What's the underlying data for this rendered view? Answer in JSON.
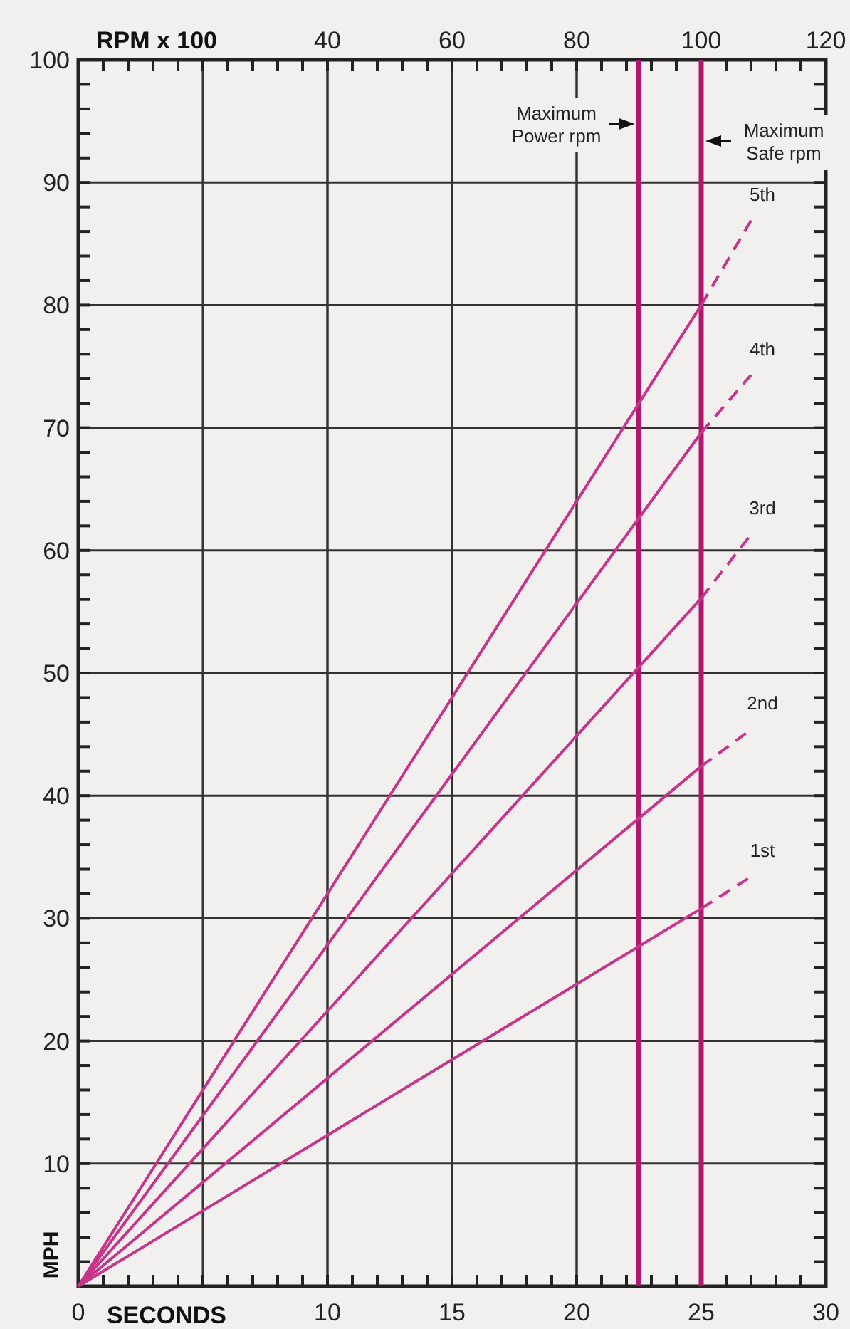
{
  "chart_data": {
    "type": "line",
    "xlabel": "SECONDS",
    "ylabel": "MPH",
    "x2label": "RPM x 100",
    "xlim": [
      0,
      30
    ],
    "ylim": [
      0,
      100
    ],
    "x2lim": [
      0,
      120
    ],
    "xticks": [
      0,
      {
        "value": 1,
        "label": null
      },
      {
        "value": 2,
        "label": null
      },
      {
        "value": 3,
        "label": null
      },
      {
        "value": 4,
        "label": null
      },
      {
        "value": 5,
        "label": null
      },
      {
        "value": 6,
        "label": null
      },
      {
        "value": 7,
        "label": null
      },
      {
        "value": 8,
        "label": null
      },
      {
        "value": 9,
        "label": null
      },
      10,
      {
        "value": 11,
        "label": null
      },
      {
        "value": 12,
        "label": null
      },
      {
        "value": 13,
        "label": null
      },
      {
        "value": 14,
        "label": null
      },
      15,
      {
        "value": 16,
        "label": null
      },
      {
        "value": 17,
        "label": null
      },
      {
        "value": 18,
        "label": null
      },
      {
        "value": 19,
        "label": null
      },
      20,
      {
        "value": 21,
        "label": null
      },
      {
        "value": 22,
        "label": null
      },
      {
        "value": 23,
        "label": null
      },
      {
        "value": 24,
        "label": null
      },
      25,
      {
        "value": 26,
        "label": null
      },
      {
        "value": 27,
        "label": null
      },
      {
        "value": 28,
        "label": null
      },
      {
        "value": 29,
        "label": null
      },
      30
    ],
    "yticks": [
      {
        "value": 2,
        "label": null
      },
      {
        "value": 4,
        "label": null
      },
      {
        "value": 6,
        "label": null
      },
      {
        "value": 8,
        "label": null
      },
      10,
      {
        "value": 12,
        "label": null
      },
      {
        "value": 14,
        "label": null
      },
      {
        "value": 16,
        "label": null
      },
      {
        "value": 18,
        "label": null
      },
      20,
      {
        "value": 22,
        "label": null
      },
      {
        "value": 24,
        "label": null
      },
      {
        "value": 26,
        "label": null
      },
      {
        "value": 28,
        "label": null
      },
      30,
      {
        "value": 32,
        "label": null
      },
      {
        "value": 34,
        "label": null
      },
      {
        "value": 36,
        "label": null
      },
      {
        "value": 38,
        "label": null
      },
      40,
      {
        "value": 42,
        "label": null
      },
      {
        "value": 44,
        "label": null
      },
      {
        "value": 46,
        "label": null
      },
      {
        "value": 48,
        "label": null
      },
      50,
      {
        "value": 52,
        "label": null
      },
      {
        "value": 54,
        "label": null
      },
      {
        "value": 56,
        "label": null
      },
      {
        "value": 58,
        "label": null
      },
      60,
      {
        "value": 62,
        "label": null
      },
      {
        "value": 64,
        "label": null
      },
      {
        "value": 66,
        "label": null
      },
      {
        "value": 68,
        "label": null
      },
      70,
      {
        "value": 72,
        "label": null
      },
      {
        "value": 74,
        "label": null
      },
      {
        "value": 76,
        "label": null
      },
      {
        "value": 78,
        "label": null
      },
      80,
      {
        "value": 82,
        "label": null
      },
      {
        "value": 84,
        "label": null
      },
      {
        "value": 86,
        "label": null
      },
      {
        "value": 88,
        "label": null
      },
      90,
      {
        "value": 92,
        "label": null
      },
      {
        "value": 94,
        "label": null
      },
      {
        "value": 96,
        "label": null
      },
      {
        "value": 98,
        "label": null
      },
      100
    ],
    "x2ticks": [
      {
        "value": 20,
        "label": null
      },
      40,
      60,
      80,
      100,
      120
    ],
    "grid": true,
    "line_style": "solid",
    "series": [
      {
        "color": "#c8348a",
        "x": [
          0,
          25
        ],
        "values": [
          0,
          30.8
        ]
      },
      {
        "name": "1st",
        "color": "#c8348a",
        "x": [
          25,
          27
        ],
        "values": [
          30.8,
          33.4
        ],
        "line_style": "dashed"
      },
      {
        "color": "#c8348a",
        "x": [
          0,
          25
        ],
        "values": [
          0,
          42.4
        ]
      },
      {
        "name": "2nd",
        "color": "#c8348a",
        "x": [
          25,
          27
        ],
        "values": [
          42.4,
          45.4
        ],
        "line_style": "dashed"
      },
      {
        "color": "#c8348a",
        "x": [
          0,
          25
        ],
        "values": [
          0,
          56.1
        ]
      },
      {
        "name": "3rd",
        "color": "#c8348a",
        "x": [
          25,
          27
        ],
        "values": [
          56.1,
          61.3
        ],
        "line_style": "dashed"
      },
      {
        "color": "#c8348a",
        "x": [
          0,
          25
        ],
        "values": [
          0,
          69.6
        ]
      },
      {
        "name": "4th",
        "color": "#c8348a",
        "x": [
          25,
          27
        ],
        "values": [
          69.6,
          74.3
        ],
        "line_style": "dashed"
      },
      {
        "color": "#c8348a",
        "x": [
          0,
          25
        ],
        "values": [
          0,
          80
        ]
      },
      {
        "name": "5th",
        "color": "#c8348a",
        "x": [
          25,
          27
        ],
        "values": [
          80,
          86.9
        ],
        "line_style": "dashed"
      }
    ],
    "ref_lines": [
      {
        "axis": "x2",
        "value": 90,
        "label": "Maximum\nPower rpm",
        "color": "#b0186e"
      },
      {
        "axis": "x2",
        "value": 100,
        "label": "Maximum\nSafe rpm",
        "color": "#b0186e"
      }
    ]
  }
}
